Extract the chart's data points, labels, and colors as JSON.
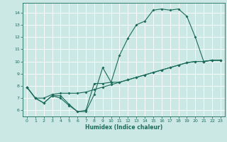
{
  "title": "",
  "xlabel": "Humidex (Indice chaleur)",
  "bg_color": "#cce8e4",
  "line_color": "#1a6b5a",
  "grid_color": "#ffffff",
  "xlim": [
    -0.5,
    23.5
  ],
  "ylim": [
    5.5,
    14.8
  ],
  "x_ticks": [
    0,
    1,
    2,
    3,
    4,
    5,
    6,
    7,
    8,
    9,
    10,
    11,
    12,
    13,
    14,
    15,
    16,
    17,
    18,
    19,
    20,
    21,
    22,
    23
  ],
  "y_ticks": [
    6,
    7,
    8,
    9,
    10,
    11,
    12,
    13,
    14
  ],
  "line1_x": [
    0,
    1,
    2,
    3,
    4,
    5,
    6,
    7,
    8,
    9,
    10,
    11,
    12,
    13,
    14,
    15,
    16,
    17,
    18,
    19,
    20,
    21,
    22,
    23
  ],
  "line1_y": [
    7.9,
    7.0,
    6.6,
    7.2,
    7.0,
    6.4,
    5.9,
    5.9,
    7.3,
    9.5,
    8.3,
    10.5,
    11.9,
    13.0,
    13.3,
    14.2,
    14.3,
    14.2,
    14.3,
    13.7,
    12.0,
    10.0,
    10.1,
    10.1
  ],
  "line2_x": [
    0,
    1,
    2,
    3,
    4,
    5,
    6,
    7,
    8,
    9,
    10,
    11,
    12,
    13,
    14,
    15,
    16,
    17,
    18,
    19,
    20,
    21,
    22,
    23
  ],
  "line2_y": [
    7.9,
    7.0,
    6.6,
    7.2,
    7.2,
    6.5,
    5.9,
    6.0,
    8.2,
    8.2,
    8.3,
    8.3,
    8.5,
    8.7,
    8.9,
    9.1,
    9.3,
    9.5,
    9.7,
    9.9,
    10.0,
    10.0,
    10.1,
    10.1
  ],
  "line3_x": [
    0,
    1,
    2,
    3,
    4,
    5,
    6,
    7,
    8,
    9,
    10,
    11,
    12,
    13,
    14,
    15,
    16,
    17,
    18,
    19,
    20,
    21,
    22,
    23
  ],
  "line3_y": [
    7.9,
    7.0,
    7.0,
    7.3,
    7.4,
    7.4,
    7.4,
    7.5,
    7.7,
    7.9,
    8.1,
    8.3,
    8.5,
    8.7,
    8.9,
    9.1,
    9.3,
    9.5,
    9.7,
    9.9,
    10.0,
    10.0,
    10.1,
    10.1
  ]
}
